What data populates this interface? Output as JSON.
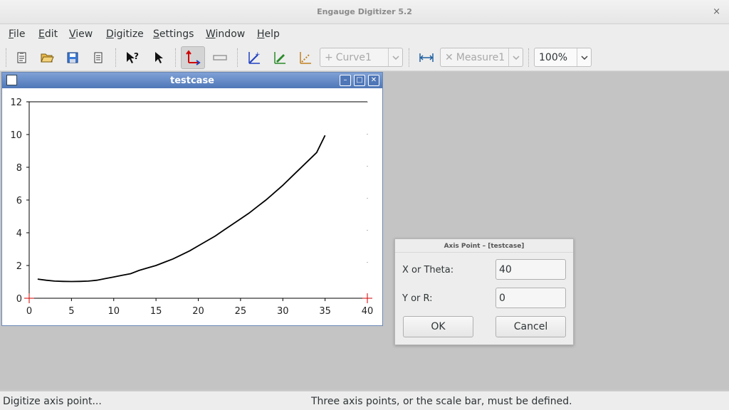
{
  "window": {
    "title": "Engauge Digitizer 5.2",
    "close_glyph": "×"
  },
  "menu": [
    {
      "label": "File",
      "accel": "F",
      "rest": "ile"
    },
    {
      "label": "Edit",
      "accel": "E",
      "rest": "dit"
    },
    {
      "label": "View",
      "accel": "V",
      "rest": "iew"
    },
    {
      "label": "Digitize",
      "accel": "D",
      "rest": "igitize"
    },
    {
      "label": "Settings",
      "accel": "S",
      "rest": "ettings"
    },
    {
      "label": "Window",
      "accel": "W",
      "rest": "indow"
    },
    {
      "label": "Help",
      "accel": "H",
      "rest": "elp"
    }
  ],
  "toolbar": {
    "curve_combo": "Curve1",
    "measure_combo": "Measure1",
    "zoom_combo": "100%",
    "icons": [
      "import-icon",
      "open-icon",
      "save-icon",
      "export-icon",
      "whats-this-icon",
      "select-icon",
      "axis-point-icon",
      "scale-bar-icon",
      "curve-point-icon",
      "point-match-icon",
      "color-picker-icon",
      "segment-fill-icon",
      "measure-icon"
    ]
  },
  "document_window": {
    "title": "testcase",
    "buttons": {
      "minimize": "–",
      "maximize": "□",
      "close": "✕"
    }
  },
  "chart_data": {
    "type": "line",
    "title": "",
    "xlabel": "",
    "ylabel": "",
    "xlim": [
      0,
      40
    ],
    "ylim": [
      0,
      12
    ],
    "x_ticks": [
      "0",
      "5",
      "10",
      "15",
      "20",
      "25",
      "30",
      "35",
      "40"
    ],
    "y_ticks": [
      "0",
      "2",
      "4",
      "6",
      "8",
      "10",
      "12"
    ],
    "series": [
      {
        "x": [
          1,
          2,
          3,
          4,
          5,
          6,
          7,
          8,
          9,
          10,
          11,
          12,
          13,
          14,
          15,
          16,
          17,
          18,
          19,
          20,
          21,
          22,
          23,
          24,
          25,
          26,
          27,
          28,
          29,
          30,
          31,
          32,
          33,
          34,
          35
        ],
        "values": [
          1.17,
          1.1,
          1.05,
          1.03,
          1.02,
          1.03,
          1.05,
          1.1,
          1.2,
          1.3,
          1.4,
          1.5,
          1.7,
          1.85,
          2.0,
          2.2,
          2.4,
          2.65,
          2.9,
          3.2,
          3.5,
          3.8,
          4.15,
          4.5,
          4.85,
          5.2,
          5.6,
          6.0,
          6.45,
          6.9,
          7.4,
          7.9,
          8.4,
          8.9,
          9.95
        ]
      }
    ],
    "axis_color": "#000000",
    "marker_color": "#d00000",
    "grid": false
  },
  "dialog": {
    "title": "Axis Point – [testcase]",
    "x_label": "X or Theta:",
    "x_value": "40",
    "y_label": "Y or R:",
    "y_value": "0",
    "ok_label": "OK",
    "cancel_label": "Cancel"
  },
  "status": {
    "left": "Digitize axis point...",
    "center": "Three axis points, or the scale bar, must be defined."
  }
}
